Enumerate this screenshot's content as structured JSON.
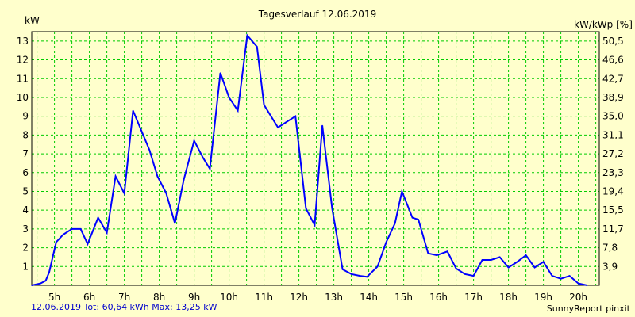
{
  "chart_data": {
    "type": "line",
    "title": "Tagesverlauf 12.06.2019",
    "ylabel_left": "kW",
    "ylabel_right": "kW/kWp [%]",
    "ylim": [
      0,
      13.5
    ],
    "xlim": [
      4.35,
      20.6
    ],
    "grid": true,
    "y_ticks_left": [
      "1",
      "2",
      "3",
      "4",
      "5",
      "6",
      "7",
      "8",
      "9",
      "10",
      "11",
      "12",
      "13"
    ],
    "y_ticks_right": [
      "3,9",
      "7,8",
      "11,7",
      "15,5",
      "19,4",
      "23,3",
      "27,2",
      "31,1",
      "35,0",
      "38,9",
      "42,7",
      "46,6",
      "50,5"
    ],
    "x_ticks": [
      "5h",
      "6h",
      "7h",
      "8h",
      "9h",
      "10h",
      "11h",
      "12h",
      "13h",
      "14h",
      "15h",
      "16h",
      "17h",
      "18h",
      "19h",
      "20h"
    ],
    "line_color": "#0000ff",
    "grid_color": "#00cc00",
    "series": [
      {
        "x": [
          4.35,
          4.6,
          4.75,
          4.85,
          5.05,
          5.25,
          5.5,
          5.75,
          5.95,
          6.25,
          6.5,
          6.75,
          7.0,
          7.25,
          7.72,
          7.95,
          8.2,
          8.45,
          8.7,
          9.0,
          9.25,
          9.45,
          9.75,
          10.0,
          10.25,
          10.52,
          10.8,
          11.0,
          11.4,
          11.9,
          12.2,
          12.45,
          12.67,
          12.95,
          13.25,
          13.5,
          13.75,
          13.95,
          14.25,
          14.5,
          14.75,
          14.95,
          15.25,
          15.42,
          15.7,
          15.95,
          16.25,
          16.5,
          16.75,
          17.0,
          17.25,
          17.5,
          17.75,
          18.0,
          18.25,
          18.5,
          18.75,
          19.0,
          19.25,
          19.5,
          19.75,
          20.0,
          20.25
        ],
        "y": [
          0.0,
          0.1,
          0.25,
          0.7,
          2.3,
          2.7,
          3.0,
          3.0,
          2.2,
          3.6,
          2.8,
          5.8,
          4.9,
          9.3,
          7.2,
          5.8,
          4.9,
          3.3,
          5.6,
          7.7,
          6.8,
          6.2,
          11.3,
          10.0,
          9.3,
          13.3,
          12.7,
          9.6,
          8.4,
          9.0,
          4.1,
          3.2,
          8.5,
          4.1,
          0.85,
          0.6,
          0.5,
          0.45,
          1.0,
          2.3,
          3.3,
          5.0,
          3.6,
          3.5,
          1.7,
          1.6,
          1.8,
          0.9,
          0.6,
          0.5,
          1.35,
          1.35,
          1.5,
          0.95,
          1.25,
          1.6,
          0.95,
          1.25,
          0.5,
          0.35,
          0.5,
          0.1,
          0.0
        ]
      }
    ]
  },
  "footer": {
    "summary": "12.06.2019 Tot: 60,64 kWh Max: 13,25 kW",
    "brand": "SunnyReport pinxit"
  }
}
